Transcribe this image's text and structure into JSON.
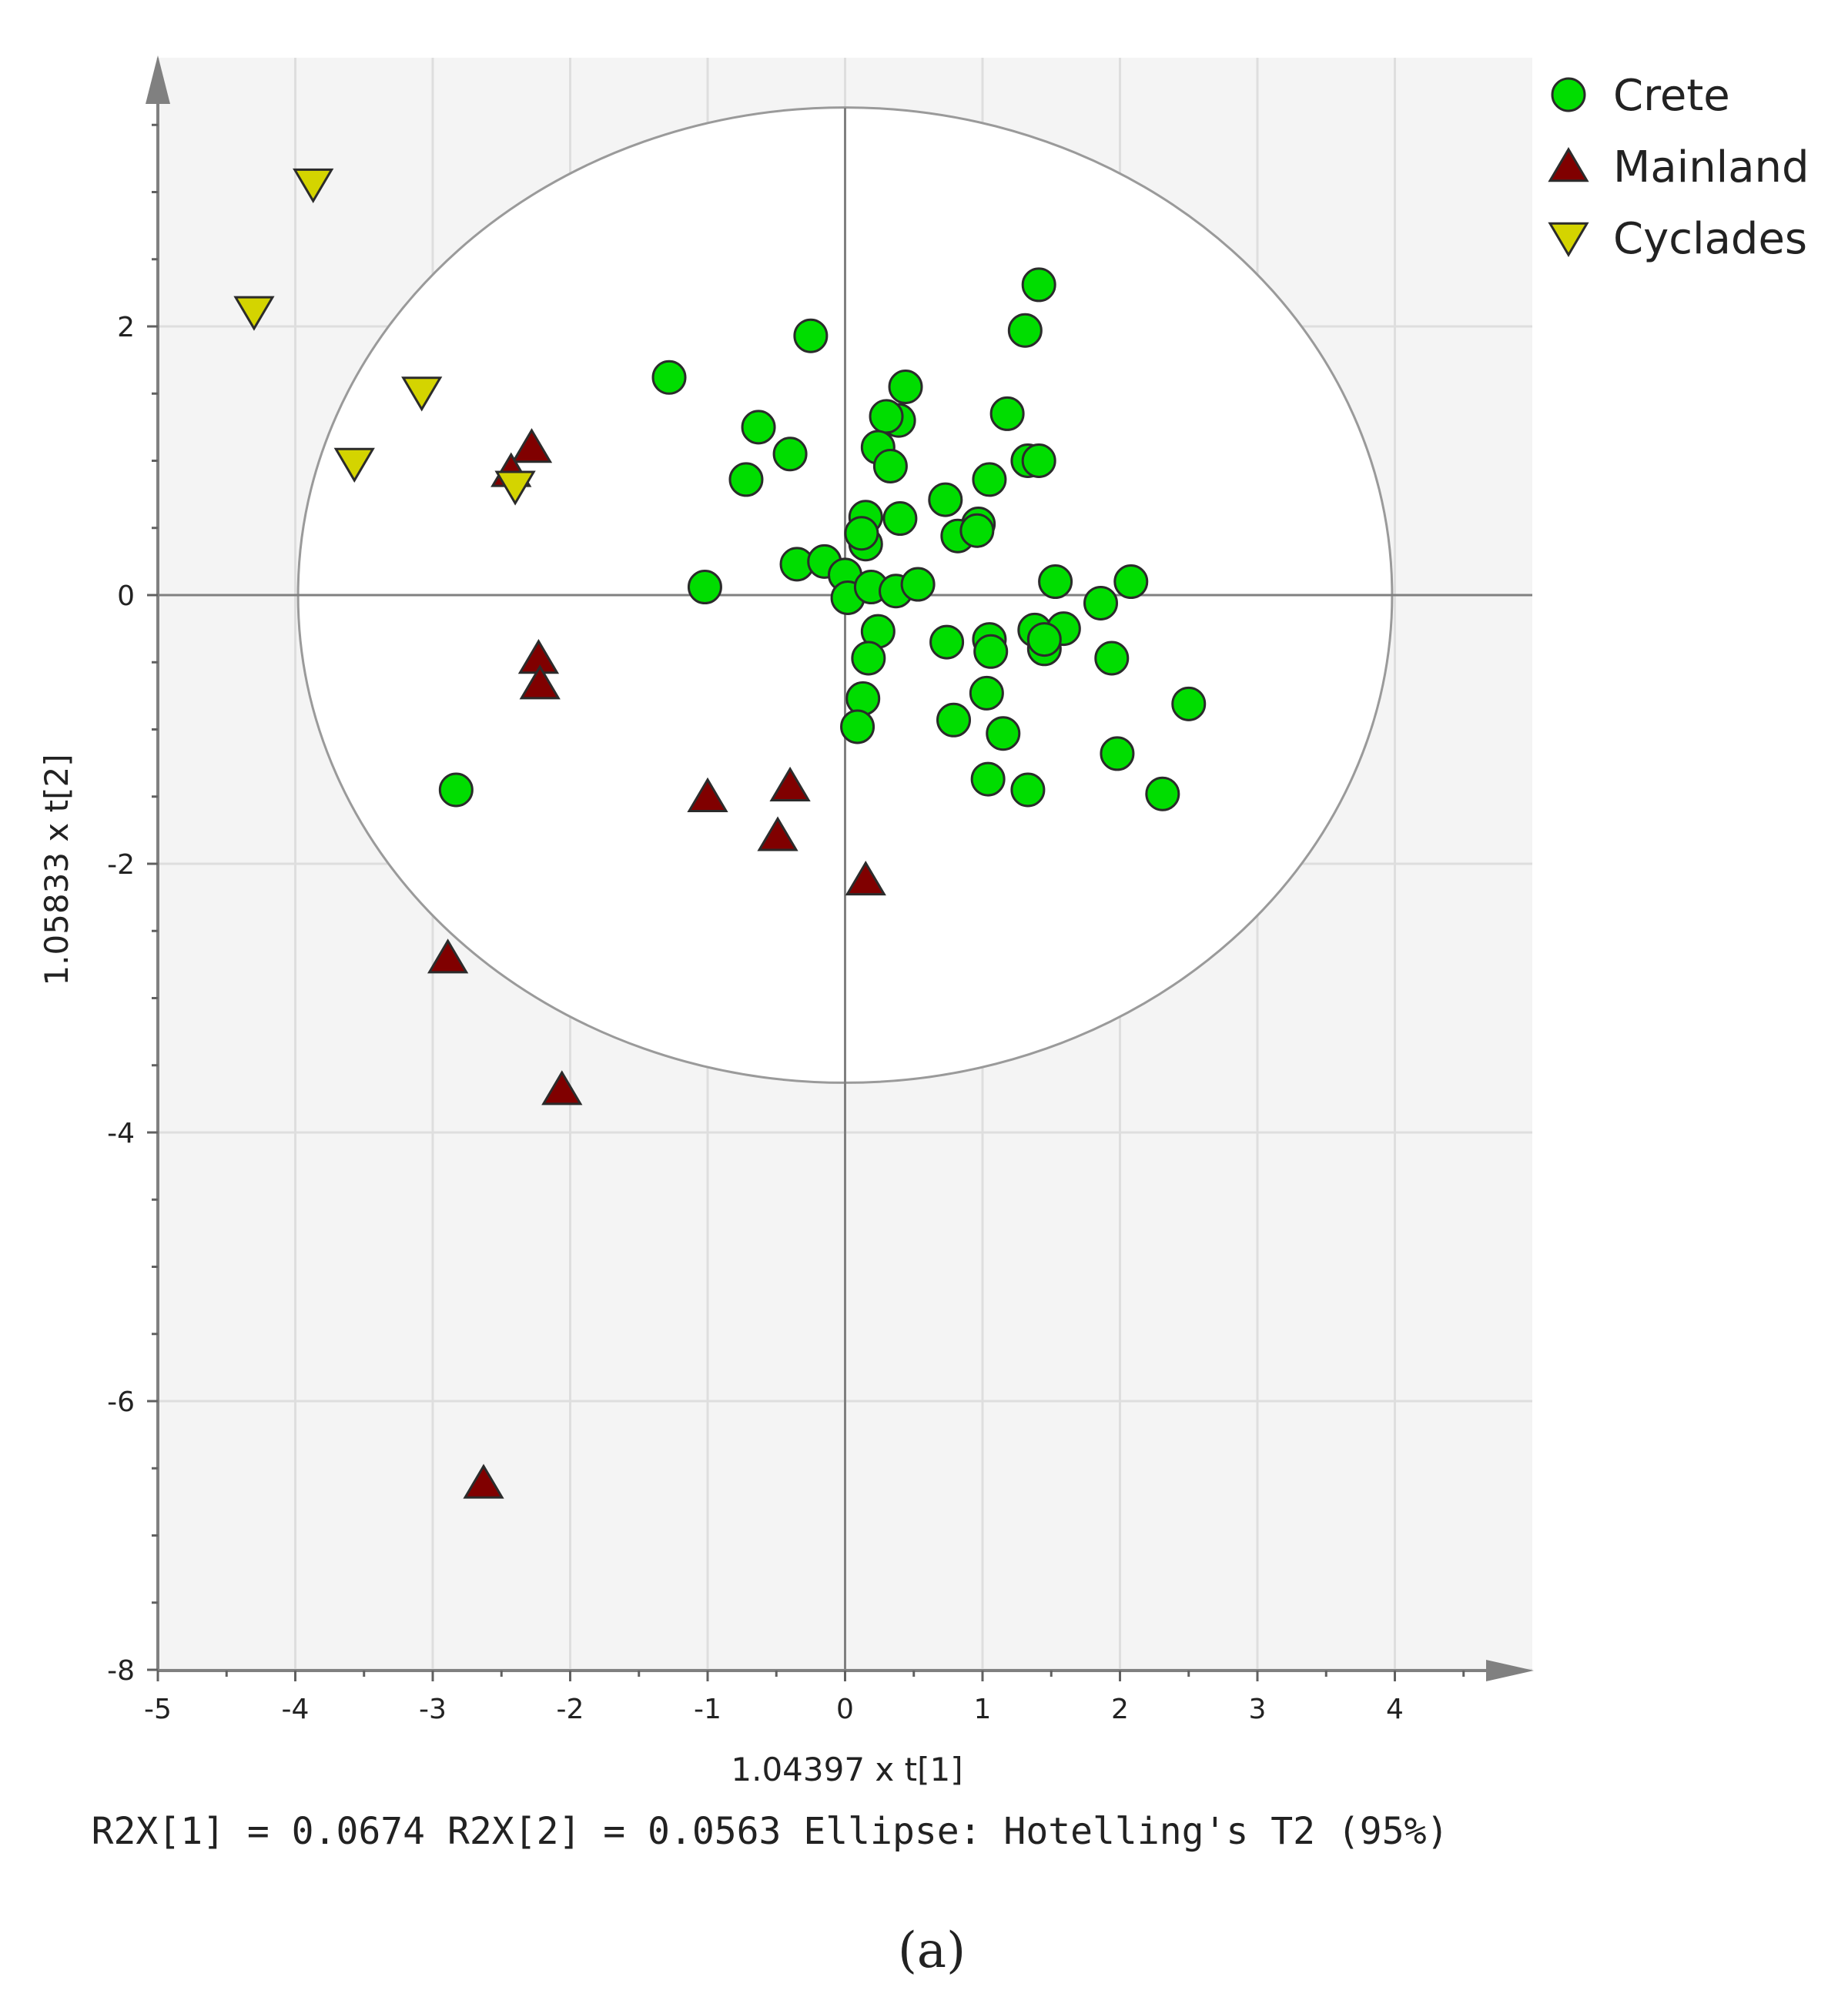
{
  "chart_data": {
    "type": "scatter",
    "xlabel": "1.04397 x t[1]",
    "ylabel": "1.05833 x t[2]",
    "xlim": [
      -5,
      5
    ],
    "ylim": [
      -8,
      4
    ],
    "xticks": [
      -5,
      -4,
      -3,
      -2,
      -1,
      0,
      1,
      2,
      3,
      4
    ],
    "yticks": [
      -8,
      -6,
      -4,
      -2,
      0,
      2
    ],
    "grid": true,
    "legend_position": "top-right",
    "ellipse": {
      "center": [
        0,
        0
      ],
      "radius_x": 3.98,
      "radius_y": 3.63,
      "label": "Hotelling's T2 (95%)"
    },
    "footer": "R2X[1] = 0.0674 R2X[2] = 0.0563 Ellipse: Hotelling's T2 (95%)",
    "caption": "(a)",
    "series": [
      {
        "name": "Crete",
        "marker": "circle",
        "color": "#00dd00",
        "points": [
          [
            1.41,
            2.31
          ],
          [
            1.31,
            1.97
          ],
          [
            -0.25,
            1.93
          ],
          [
            -1.28,
            1.62
          ],
          [
            0.44,
            1.55
          ],
          [
            1.18,
            1.35
          ],
          [
            -0.63,
            1.25
          ],
          [
            0.39,
            1.3
          ],
          [
            0.3,
            1.33
          ],
          [
            0.24,
            1.1
          ],
          [
            -0.4,
            1.05
          ],
          [
            0.33,
            0.96
          ],
          [
            1.33,
            1.0
          ],
          [
            1.41,
            1.0
          ],
          [
            -0.72,
            0.86
          ],
          [
            1.05,
            0.86
          ],
          [
            0.73,
            0.71
          ],
          [
            0.15,
            0.58
          ],
          [
            0.4,
            0.57
          ],
          [
            0.97,
            0.53
          ],
          [
            0.82,
            0.44
          ],
          [
            0.96,
            0.48
          ],
          [
            0.15,
            0.38
          ],
          [
            0.12,
            0.46
          ],
          [
            -0.35,
            0.23
          ],
          [
            -0.15,
            0.25
          ],
          [
            0.0,
            0.15
          ],
          [
            -1.02,
            0.06
          ],
          [
            0.02,
            -0.02
          ],
          [
            0.19,
            0.06
          ],
          [
            0.37,
            0.03
          ],
          [
            0.53,
            0.08
          ],
          [
            1.53,
            0.1
          ],
          [
            2.08,
            0.1
          ],
          [
            1.86,
            -0.06
          ],
          [
            0.24,
            -0.27
          ],
          [
            1.38,
            -0.26
          ],
          [
            1.59,
            -0.25
          ],
          [
            0.74,
            -0.35
          ],
          [
            1.05,
            -0.33
          ],
          [
            1.06,
            -0.42
          ],
          [
            1.45,
            -0.4
          ],
          [
            1.45,
            -0.33
          ],
          [
            0.17,
            -0.47
          ],
          [
            1.94,
            -0.47
          ],
          [
            2.5,
            -0.81
          ],
          [
            1.03,
            -0.73
          ],
          [
            0.13,
            -0.77
          ],
          [
            0.79,
            -0.93
          ],
          [
            0.09,
            -0.98
          ],
          [
            1.15,
            -1.03
          ],
          [
            1.98,
            -1.18
          ],
          [
            1.04,
            -1.37
          ],
          [
            1.33,
            -1.45
          ],
          [
            2.31,
            -1.48
          ],
          [
            -2.83,
            -1.45
          ]
        ]
      },
      {
        "name": "Mainland",
        "marker": "triangle-up",
        "color": "#800000",
        "points": [
          [
            -2.28,
            1.1
          ],
          [
            -2.43,
            0.92
          ],
          [
            -2.23,
            -0.47
          ],
          [
            -2.22,
            -0.66
          ],
          [
            -0.4,
            -1.42
          ],
          [
            -1.0,
            -1.5
          ],
          [
            -0.49,
            -1.79
          ],
          [
            0.15,
            -2.12
          ],
          [
            -2.89,
            -2.7
          ],
          [
            -2.06,
            -3.68
          ],
          [
            -2.63,
            -6.61
          ]
        ]
      },
      {
        "name": "Cyclades",
        "marker": "triangle-down",
        "color": "#d4d400",
        "points": [
          [
            -3.87,
            3.06
          ],
          [
            -4.3,
            2.11
          ],
          [
            -3.08,
            1.51
          ],
          [
            -3.57,
            0.98
          ],
          [
            -2.4,
            0.81
          ]
        ]
      }
    ]
  }
}
